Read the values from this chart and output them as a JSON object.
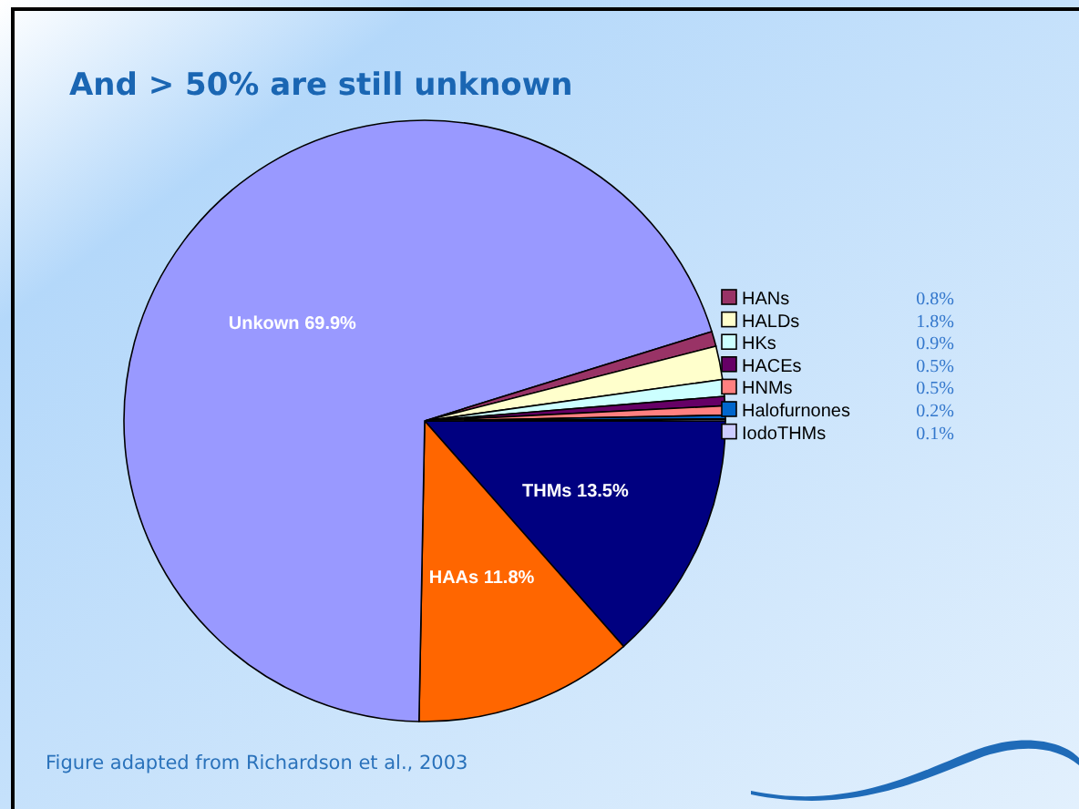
{
  "chart_data": {
    "type": "pie",
    "title": "And > 50% are still unknown",
    "categories": [
      "THMs",
      "HAAs",
      "Unkown",
      "HANs",
      "HALDs",
      "HKs",
      "HACEs",
      "HNMs",
      "Halofurnones",
      "IodoTHMs"
    ],
    "values": [
      13.5,
      11.8,
      69.9,
      0.8,
      1.8,
      0.9,
      0.5,
      0.5,
      0.2,
      0.1
    ],
    "colors": [
      "#000080",
      "#ff6600",
      "#9999ff",
      "#993366",
      "#ffffcc",
      "#ccffff",
      "#660066",
      "#ff8080",
      "#0066cc",
      "#ccccff"
    ],
    "value_labels": [
      "13.5%",
      "11.8%",
      "69.9%",
      "0.8%",
      "1.8%",
      "0.9%",
      "0.5%",
      "0.5%",
      "0.2%",
      "0.1%"
    ],
    "legend": "right",
    "annotations": [
      "Figure adapted from Richardson et al., 2003"
    ]
  }
}
